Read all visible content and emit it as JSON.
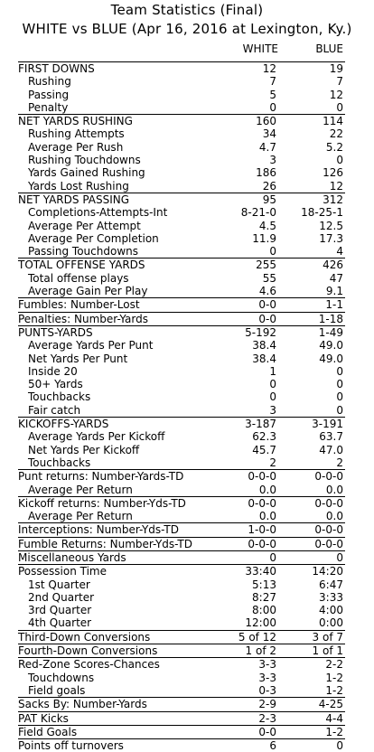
{
  "title_line1": "Team Statistics (Final)",
  "title_line2": "WHITE vs BLUE (Apr 16, 2016 at Lexington, Ky.)",
  "columns": [
    "WHITE",
    "BLUE"
  ],
  "rows": [
    {
      "label": "FIRST DOWNS",
      "sub": false,
      "section": true,
      "white": "12",
      "blue": "19"
    },
    {
      "label": "Rushing",
      "sub": true,
      "section": false,
      "white": "7",
      "blue": "7"
    },
    {
      "label": "Passing",
      "sub": true,
      "section": false,
      "white": "5",
      "blue": "12"
    },
    {
      "label": "Penalty",
      "sub": true,
      "section": false,
      "white": "0",
      "blue": "0"
    },
    {
      "label": "NET YARDS RUSHING",
      "sub": false,
      "section": true,
      "white": "160",
      "blue": "114"
    },
    {
      "label": "Rushing Attempts",
      "sub": true,
      "section": false,
      "white": "34",
      "blue": "22"
    },
    {
      "label": "Average Per Rush",
      "sub": true,
      "section": false,
      "white": "4.7",
      "blue": "5.2"
    },
    {
      "label": "Rushing Touchdowns",
      "sub": true,
      "section": false,
      "white": "3",
      "blue": "0"
    },
    {
      "label": "Yards Gained Rushing",
      "sub": true,
      "section": false,
      "white": "186",
      "blue": "126"
    },
    {
      "label": "Yards Lost Rushing",
      "sub": true,
      "section": false,
      "white": "26",
      "blue": "12"
    },
    {
      "label": "NET YARDS PASSING",
      "sub": false,
      "section": true,
      "white": "95",
      "blue": "312"
    },
    {
      "label": "Completions-Attempts-Int",
      "sub": true,
      "section": false,
      "white": "8-21-0",
      "blue": "18-25-1"
    },
    {
      "label": "Average Per Attempt",
      "sub": true,
      "section": false,
      "white": "4.5",
      "blue": "12.5"
    },
    {
      "label": "Average Per Completion",
      "sub": true,
      "section": false,
      "white": "11.9",
      "blue": "17.3"
    },
    {
      "label": "Passing Touchdowns",
      "sub": true,
      "section": false,
      "white": "0",
      "blue": "4"
    },
    {
      "label": "TOTAL OFFENSE YARDS",
      "sub": false,
      "section": true,
      "white": "255",
      "blue": "426"
    },
    {
      "label": "Total offense plays",
      "sub": true,
      "section": false,
      "white": "55",
      "blue": "47"
    },
    {
      "label": "Average Gain Per Play",
      "sub": true,
      "section": false,
      "white": "4.6",
      "blue": "9.1"
    },
    {
      "label": "Fumbles: Number-Lost",
      "sub": false,
      "section": true,
      "white": "0-0",
      "blue": "1-1"
    },
    {
      "label": "Penalties: Number-Yards",
      "sub": false,
      "section": true,
      "white": "0-0",
      "blue": "1-18"
    },
    {
      "label": "PUNTS-YARDS",
      "sub": false,
      "section": true,
      "white": "5-192",
      "blue": "1-49"
    },
    {
      "label": "Average Yards Per Punt",
      "sub": true,
      "section": false,
      "white": "38.4",
      "blue": "49.0"
    },
    {
      "label": "Net Yards Per Punt",
      "sub": true,
      "section": false,
      "white": "38.4",
      "blue": "49.0"
    },
    {
      "label": "Inside 20",
      "sub": true,
      "section": false,
      "white": "1",
      "blue": "0"
    },
    {
      "label": "50+ Yards",
      "sub": true,
      "section": false,
      "white": "0",
      "blue": "0"
    },
    {
      "label": "Touchbacks",
      "sub": true,
      "section": false,
      "white": "0",
      "blue": "0"
    },
    {
      "label": "Fair catch",
      "sub": true,
      "section": false,
      "white": "3",
      "blue": "0"
    },
    {
      "label": "KICKOFFS-YARDS",
      "sub": false,
      "section": true,
      "white": "3-187",
      "blue": "3-191"
    },
    {
      "label": "Average Yards Per Kickoff",
      "sub": true,
      "section": false,
      "white": "62.3",
      "blue": "63.7"
    },
    {
      "label": "Net Yards Per Kickoff",
      "sub": true,
      "section": false,
      "white": "45.7",
      "blue": "47.0"
    },
    {
      "label": "Touchbacks",
      "sub": true,
      "section": false,
      "white": "2",
      "blue": "2"
    },
    {
      "label": "Punt returns: Number-Yards-TD",
      "sub": false,
      "section": true,
      "white": "0-0-0",
      "blue": "0-0-0"
    },
    {
      "label": "Average Per Return",
      "sub": true,
      "section": false,
      "white": "0.0",
      "blue": "0.0"
    },
    {
      "label": "Kickoff returns: Number-Yds-TD",
      "sub": false,
      "section": true,
      "white": "0-0-0",
      "blue": "0-0-0"
    },
    {
      "label": "Average Per Return",
      "sub": true,
      "section": false,
      "white": "0.0",
      "blue": "0.0"
    },
    {
      "label": "Interceptions: Number-Yds-TD",
      "sub": false,
      "section": true,
      "white": "1-0-0",
      "blue": "0-0-0"
    },
    {
      "label": "Fumble Returns: Number-Yds-TD",
      "sub": false,
      "section": true,
      "white": "0-0-0",
      "blue": "0-0-0"
    },
    {
      "label": "Miscellaneous Yards",
      "sub": false,
      "section": true,
      "white": "0",
      "blue": "0"
    },
    {
      "label": "Possession Time",
      "sub": false,
      "section": true,
      "white": "33:40",
      "blue": "14:20"
    },
    {
      "label": "1st Quarter",
      "sub": true,
      "section": false,
      "white": "5:13",
      "blue": "6:47"
    },
    {
      "label": "2nd Quarter",
      "sub": true,
      "section": false,
      "white": "8:27",
      "blue": "3:33"
    },
    {
      "label": "3rd Quarter",
      "sub": true,
      "section": false,
      "white": "8:00",
      "blue": "4:00"
    },
    {
      "label": "4th Quarter",
      "sub": true,
      "section": false,
      "white": "12:00",
      "blue": "0:00"
    },
    {
      "label": "Third-Down Conversions",
      "sub": false,
      "section": true,
      "white": "5 of 12",
      "blue": "3 of 7"
    },
    {
      "label": "Fourth-Down Conversions",
      "sub": false,
      "section": true,
      "white": "1 of 2",
      "blue": "1 of 1"
    },
    {
      "label": "Red-Zone Scores-Chances",
      "sub": false,
      "section": true,
      "white": "3-3",
      "blue": "2-2"
    },
    {
      "label": "Touchdowns",
      "sub": true,
      "section": false,
      "white": "3-3",
      "blue": "1-2"
    },
    {
      "label": "Field goals",
      "sub": true,
      "section": false,
      "white": "0-3",
      "blue": "1-2"
    },
    {
      "label": "Sacks By: Number-Yards",
      "sub": false,
      "section": true,
      "white": "2-9",
      "blue": "4-25"
    },
    {
      "label": "PAT Kicks",
      "sub": false,
      "section": true,
      "white": "2-3",
      "blue": "4-4"
    },
    {
      "label": "Field Goals",
      "sub": false,
      "section": true,
      "white": "0-0",
      "blue": "1-2"
    },
    {
      "label": "Points off turnovers",
      "sub": false,
      "section": true,
      "white": "6",
      "blue": "0"
    }
  ]
}
